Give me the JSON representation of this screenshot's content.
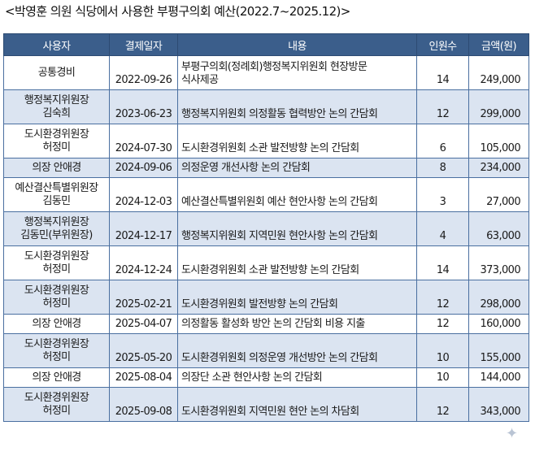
{
  "caption": "<박영훈 의원 식당에서 사용한 부평구의회 예산(2022.7~2025.12)>",
  "headers": {
    "user": "사용자",
    "date": "결제일자",
    "content": "내용",
    "count": "인원수",
    "amount": "금액(원)"
  },
  "rows": [
    {
      "user_line1": "공통경비",
      "user_line2": "",
      "date": "2022-09-26",
      "content": "부평구의회(정례회)행정복지위원회 현장방문\n식사제공",
      "count": "14",
      "amount": "249,000",
      "shaded": false
    },
    {
      "user_line1": "행정복지위원장",
      "user_line2": "김숙희",
      "date": "2023-06-23",
      "content": "행정복지위원회 의정활동 협력방안 논의 간담회",
      "count": "12",
      "amount": "299,000",
      "shaded": true
    },
    {
      "user_line1": "도시환경위원장",
      "user_line2": "허정미",
      "date": "2024-07-30",
      "content": "도시환경위원회 소관 발전방향 논의 간담회",
      "count": "6",
      "amount": "105,000",
      "shaded": false
    },
    {
      "user_line1": "의장 안애경",
      "user_line2": "",
      "date": "2024-09-06",
      "content": "의정운영 개선사항 논의 간담회",
      "count": "8",
      "amount": "234,000",
      "shaded": true,
      "short": true
    },
    {
      "user_line1": "예산결산특별위원장",
      "user_line2": "김동민",
      "date": "2024-12-03",
      "content": "예산결산특별위원회 예산 현안사항 논의 간담회",
      "count": "3",
      "amount": "27,000",
      "shaded": false
    },
    {
      "user_line1": "행정복지위원장",
      "user_line2": "김동민(부위원장)",
      "date": "2024-12-17",
      "content": "행정복지위원회 지역민원 현안사항 논의 간담회",
      "count": "4",
      "amount": "63,000",
      "shaded": true
    },
    {
      "user_line1": "도시환경위원장",
      "user_line2": "허정미",
      "date": "2024-12-24",
      "content": "도시환경위원회 소관 발전방향 논의 간담회",
      "count": "14",
      "amount": "373,000",
      "shaded": false
    },
    {
      "user_line1": "도시환경위원장",
      "user_line2": "허정미",
      "date": "2025-02-21",
      "content": "도시환경위원회 발전방향 논의 간담회",
      "count": "12",
      "amount": "298,000",
      "shaded": true
    },
    {
      "user_line1": "의장 안애경",
      "user_line2": "",
      "date": "2025-04-07",
      "content": "의정활동 활성화 방안 논의 간담회 비용 지출",
      "count": "12",
      "amount": "160,000",
      "shaded": false,
      "short": true
    },
    {
      "user_line1": "도시환경위원장",
      "user_line2": "허정미",
      "date": "2025-05-20",
      "content": "도시환경위원회 의정운영 개선방안 논의 간담회",
      "count": "10",
      "amount": "155,000",
      "shaded": true
    },
    {
      "user_line1": "의장 안애경",
      "user_line2": "",
      "date": "2025-08-04",
      "content": "의장단 소관 현안사항 논의 간담회",
      "count": "10",
      "amount": "144,000",
      "shaded": false,
      "short": true
    },
    {
      "user_line1": "도시환경위원장",
      "user_line2": "허정미",
      "date": "2025-09-08",
      "content": "도시환경위원회 지역민원 현안 논의 차담회",
      "count": "12",
      "amount": "343,000",
      "shaded": true
    }
  ]
}
